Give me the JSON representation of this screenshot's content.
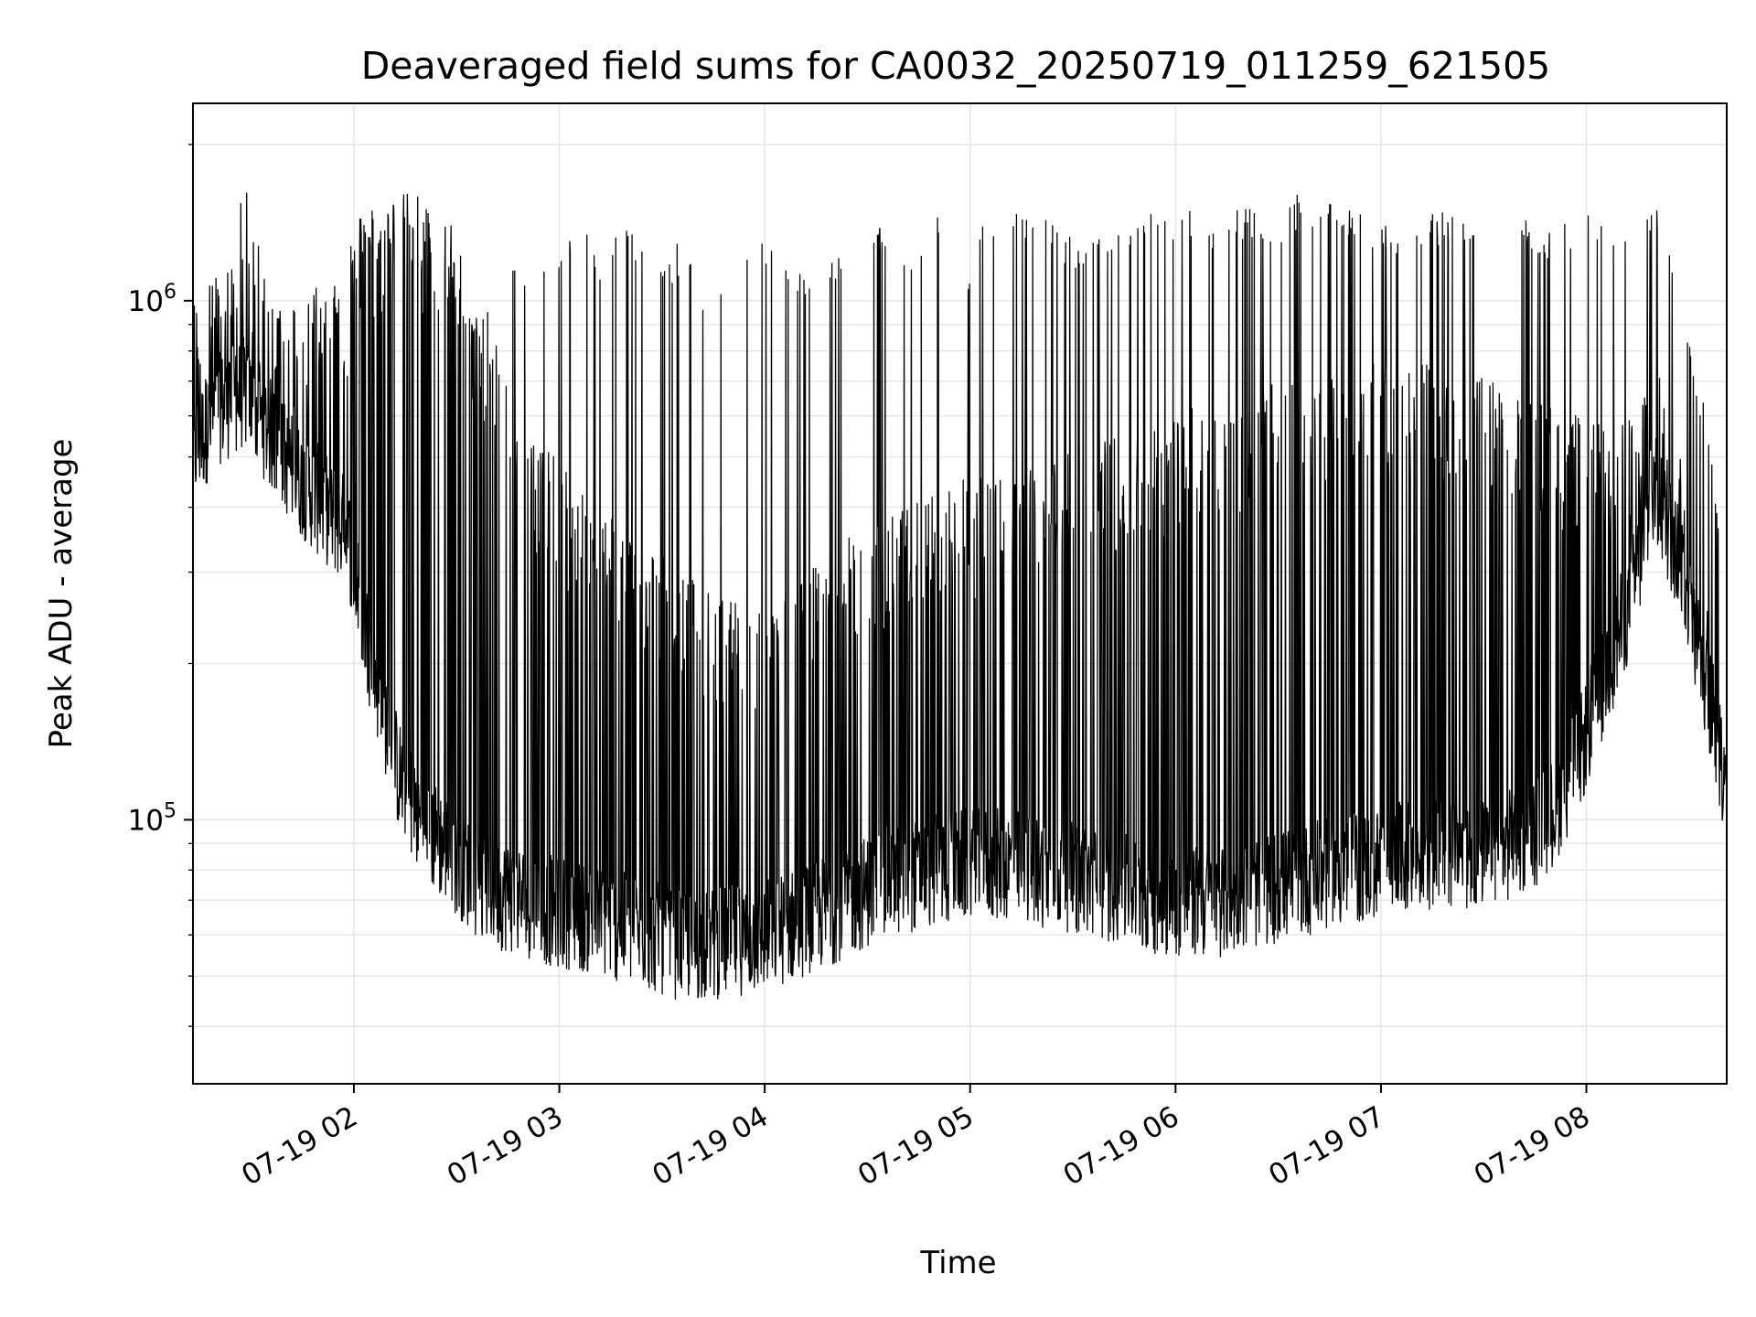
{
  "chart_data": {
    "type": "line",
    "title": "Deaveraged field sums for CA0032_20250719_011259_621505",
    "xlabel": "Time",
    "ylabel": "Peak ADU - average",
    "y_scale": "log",
    "x_range": [
      "2025-07-19 01:13",
      "2025-07-19 08:41"
    ],
    "ylim": [
      31000,
      2400000
    ],
    "x_ticks": [
      {
        "value": "2025-07-19 02:00",
        "label": "07-19 02"
      },
      {
        "value": "2025-07-19 03:00",
        "label": "07-19 03"
      },
      {
        "value": "2025-07-19 04:00",
        "label": "07-19 04"
      },
      {
        "value": "2025-07-19 05:00",
        "label": "07-19 05"
      },
      {
        "value": "2025-07-19 06:00",
        "label": "07-19 06"
      },
      {
        "value": "2025-07-19 07:00",
        "label": "07-19 07"
      },
      {
        "value": "2025-07-19 08:00",
        "label": "07-19 08"
      }
    ],
    "y_major_ticks": [
      {
        "value": 100000,
        "base": "10",
        "exp": "5"
      },
      {
        "value": 1000000,
        "base": "10",
        "exp": "6"
      }
    ],
    "grid": true,
    "line_color": "#000000",
    "grid_color": "#e6e6e6",
    "series": [
      {
        "x": [
          "2025-07-19 01:13",
          "2025-07-19 01:20",
          "2025-07-19 01:28",
          "2025-07-19 01:35",
          "2025-07-19 01:43",
          "2025-07-19 01:50",
          "2025-07-19 01:58",
          "2025-07-19 02:05",
          "2025-07-19 02:13",
          "2025-07-19 02:20",
          "2025-07-19 02:28",
          "2025-07-19 02:35",
          "2025-07-19 02:43",
          "2025-07-19 02:50",
          "2025-07-19 02:58",
          "2025-07-19 03:05",
          "2025-07-19 03:13",
          "2025-07-19 03:20",
          "2025-07-19 03:28",
          "2025-07-19 03:35",
          "2025-07-19 03:43",
          "2025-07-19 03:50",
          "2025-07-19 03:58",
          "2025-07-19 04:05",
          "2025-07-19 04:13",
          "2025-07-19 04:20",
          "2025-07-19 04:28",
          "2025-07-19 04:35",
          "2025-07-19 04:43",
          "2025-07-19 04:50",
          "2025-07-19 04:58",
          "2025-07-19 05:05",
          "2025-07-19 05:13",
          "2025-07-19 05:20",
          "2025-07-19 05:28",
          "2025-07-19 05:35",
          "2025-07-19 05:43",
          "2025-07-19 05:50",
          "2025-07-19 05:58",
          "2025-07-19 06:05",
          "2025-07-19 06:13",
          "2025-07-19 06:20",
          "2025-07-19 06:28",
          "2025-07-19 06:35",
          "2025-07-19 06:43",
          "2025-07-19 06:50",
          "2025-07-19 06:58",
          "2025-07-19 07:05",
          "2025-07-19 07:13",
          "2025-07-19 07:20",
          "2025-07-19 07:28",
          "2025-07-19 07:35",
          "2025-07-19 07:43",
          "2025-07-19 07:50",
          "2025-07-19 07:58",
          "2025-07-19 08:05",
          "2025-07-19 08:13",
          "2025-07-19 08:20",
          "2025-07-19 08:28",
          "2025-07-19 08:35",
          "2025-07-19 08:41"
        ],
        "low": [
          500000,
          600000,
          650000,
          550000,
          450000,
          400000,
          350000,
          200000,
          120000,
          95000,
          85000,
          75000,
          70000,
          68000,
          65000,
          64000,
          62000,
          60000,
          58000,
          56000,
          56000,
          57000,
          58000,
          60000,
          63000,
          66000,
          70000,
          74000,
          76000,
          78000,
          80000,
          80000,
          80000,
          78000,
          76000,
          74000,
          72000,
          70000,
          68000,
          68000,
          68000,
          70000,
          72000,
          74000,
          76000,
          78000,
          80000,
          82000,
          84000,
          84000,
          84000,
          86000,
          90000,
          100000,
          130000,
          180000,
          260000,
          420000,
          300000,
          180000,
          110000
        ],
        "high": [
          850000,
          950000,
          1050000,
          900000,
          850000,
          950000,
          1000000,
          1300000,
          1350000,
          1350000,
          1200000,
          900000,
          700000,
          500000,
          420000,
          380000,
          350000,
          300000,
          280000,
          260000,
          230000,
          220000,
          220000,
          230000,
          250000,
          280000,
          300000,
          320000,
          340000,
          360000,
          380000,
          380000,
          390000,
          400000,
          420000,
          440000,
          460000,
          480000,
          500000,
          520000,
          540000,
          560000,
          580000,
          600000,
          620000,
          640000,
          650000,
          650000,
          640000,
          620000,
          600000,
          580000,
          560000,
          520000,
          500000,
          480000,
          500000,
          650000,
          400000,
          220000,
          150000
        ],
        "spike": [
          1250000,
          1100000,
          1800000,
          1000000,
          900000,
          950000,
          1350000,
          1550000,
          1500000,
          1450000,
          1350000,
          900000,
          1300000,
          1250000,
          1150000,
          1400000,
          1250000,
          1450000,
          1200000,
          1300000,
          1100000,
          1050000,
          1350000,
          1200000,
          1150000,
          1300000,
          1100000,
          1500000,
          1150000,
          1550000,
          1100000,
          1550000,
          1550000,
          1500000,
          1350000,
          1350000,
          1450000,
          1450000,
          1550000,
          1500000,
          1450000,
          1550000,
          1450000,
          1600000,
          1550000,
          1500000,
          1450000,
          1450000,
          1450000,
          1500000,
          1450000,
          1400000,
          1450000,
          1350000,
          1500000,
          1400000,
          1300000,
          1650000,
          1050000,
          600000,
          300000
        ]
      }
    ]
  }
}
